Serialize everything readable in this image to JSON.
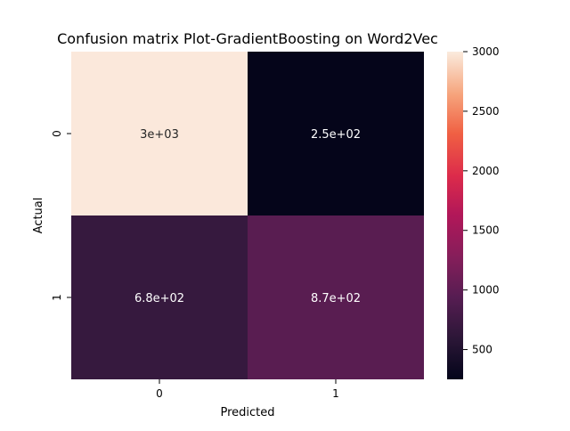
{
  "chart_data": {
    "type": "heatmap",
    "title": "Confusion matrix Plot-GradientBoosting on Word2Vec",
    "xlabel": "Predicted",
    "ylabel": "Actual",
    "x_categories": [
      "0",
      "1"
    ],
    "y_categories": [
      "0",
      "1"
    ],
    "cells": [
      {
        "row": 0,
        "col": 0,
        "value": 3000,
        "label": "3e+03",
        "color": "#fbe8db"
      },
      {
        "row": 0,
        "col": 1,
        "value": 250,
        "label": "2.5e+02",
        "color": "#05051a"
      },
      {
        "row": 1,
        "col": 0,
        "value": 680,
        "label": "6.8e+02",
        "color": "#36193e"
      },
      {
        "row": 1,
        "col": 1,
        "value": 870,
        "label": "8.7e+02",
        "color": "#591d51"
      }
    ],
    "annotation_colors": [
      "#262626",
      "#ffffff",
      "#ffffff",
      "#ffffff"
    ],
    "colorbar": {
      "vmin": 250,
      "vmax": 3000,
      "ticks": [
        500,
        1000,
        1500,
        2000,
        2500,
        3000
      ],
      "tick_labels": [
        "500",
        "1000",
        "1500",
        "2000",
        "2500",
        "3000"
      ],
      "colormap": "rocket"
    }
  }
}
